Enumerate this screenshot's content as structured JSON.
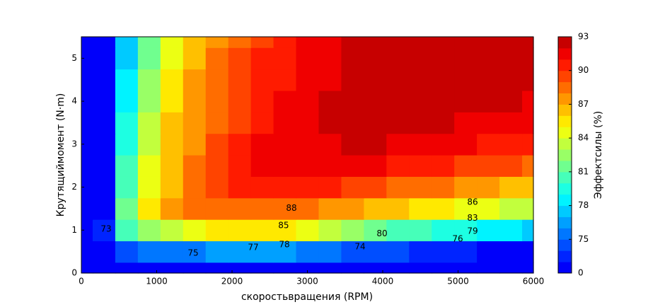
{
  "chart_data": {
    "type": "contour",
    "xlabel": "скоростьвращения (RPM)",
    "ylabel": "Крутящиймомент (N·m)",
    "colorbar_label": "Эффектсилы (%)",
    "colormap": "jet",
    "x": [
      0,
      300,
      600,
      900,
      1200,
      1500,
      1800,
      2100,
      2400,
      2700,
      3000,
      3300,
      3600,
      3900,
      4200,
      4500,
      4800,
      5100,
      5400,
      5700,
      6000
    ],
    "y": [
      0,
      0.5,
      1,
      1.5,
      2,
      2.5,
      3,
      3.5,
      4,
      4.5,
      5,
      5.5
    ],
    "z": [
      [
        50,
        50,
        50,
        50,
        50,
        50,
        50,
        50,
        50,
        50,
        50,
        50,
        50,
        50,
        50,
        50,
        50,
        50,
        50,
        50,
        50
      ],
      [
        50,
        70,
        74,
        75,
        75,
        75,
        76,
        76,
        76,
        76,
        75,
        75,
        74,
        74,
        74,
        73,
        73,
        73,
        72,
        72,
        72
      ],
      [
        50,
        73,
        80,
        82,
        83,
        84,
        85,
        85,
        85,
        85,
        84,
        83,
        82,
        81,
        80,
        80,
        79,
        79,
        78,
        78,
        77
      ],
      [
        50,
        72,
        81,
        85,
        87,
        88,
        88,
        88,
        88,
        88,
        88,
        87,
        87,
        86,
        86,
        85,
        85,
        84,
        84,
        83,
        83
      ],
      [
        50,
        72,
        80,
        84,
        86,
        88,
        89,
        90,
        90,
        90,
        90,
        90,
        89,
        89,
        88,
        88,
        88,
        87,
        87,
        86,
        86
      ],
      [
        50,
        71,
        80,
        84,
        86,
        88,
        89,
        90,
        91,
        91,
        91,
        91,
        91,
        91,
        90,
        90,
        90,
        89,
        89,
        89,
        88
      ],
      [
        50,
        71,
        79,
        83,
        86,
        87,
        89,
        90,
        91,
        91,
        91,
        91,
        92,
        92,
        91,
        91,
        91,
        91,
        90,
        90,
        90
      ],
      [
        50,
        70,
        79,
        83,
        86,
        87,
        88,
        89,
        90,
        91,
        91,
        92,
        92,
        92,
        92,
        92,
        92,
        91,
        91,
        91,
        91
      ],
      [
        50,
        70,
        78,
        82,
        85,
        87,
        88,
        89,
        90,
        91,
        91,
        92,
        92,
        93,
        93,
        93,
        92,
        92,
        92,
        92,
        91
      ],
      [
        50,
        69,
        78,
        82,
        85,
        87,
        88,
        89,
        90,
        90,
        91,
        91,
        92,
        93,
        93,
        93,
        93,
        93,
        93,
        92,
        92
      ],
      [
        50,
        69,
        77,
        81,
        84,
        86,
        88,
        89,
        90,
        90,
        91,
        91,
        92,
        93,
        93,
        93,
        93,
        93,
        93,
        93,
        93
      ],
      [
        50,
        68,
        77,
        81,
        84,
        86,
        87,
        88,
        89,
        90,
        91,
        91,
        92,
        93,
        93,
        93,
        93,
        93,
        93,
        93,
        93
      ]
    ],
    "levels": [
      0,
      73,
      74,
      75,
      76,
      77,
      78,
      79,
      80,
      81,
      82,
      83,
      84,
      85,
      86,
      87,
      88,
      89,
      90,
      91,
      92,
      93
    ],
    "colorbar_ticks": [
      0,
      75,
      78,
      81,
      84,
      87,
      90,
      93
    ],
    "contour_labels": [
      {
        "value": 88,
        "x": 2789,
        "y": 1.51
      },
      {
        "value": 86,
        "x": 5193,
        "y": 1.65
      },
      {
        "value": 85,
        "x": 2685,
        "y": 1.1
      },
      {
        "value": 83,
        "x": 5193,
        "y": 1.28
      },
      {
        "value": 80,
        "x": 3991,
        "y": 0.91
      },
      {
        "value": 79,
        "x": 5193,
        "y": 0.97
      },
      {
        "value": 78,
        "x": 2695,
        "y": 0.66
      },
      {
        "value": 77,
        "x": 2282,
        "y": 0.59
      },
      {
        "value": 76,
        "x": 4995,
        "y": 0.79
      },
      {
        "value": 74,
        "x": 3700,
        "y": 0.61
      },
      {
        "value": 75,
        "x": 1484,
        "y": 0.46
      },
      {
        "value": 73,
        "x": 329,
        "y": 1.02
      }
    ],
    "xlim": [
      0,
      6000
    ],
    "ylim": [
      0,
      5.5
    ],
    "xticks": [
      0,
      1000,
      2000,
      3000,
      4000,
      5000,
      6000
    ],
    "yticks": [
      0,
      1,
      2,
      3,
      4,
      5
    ]
  }
}
